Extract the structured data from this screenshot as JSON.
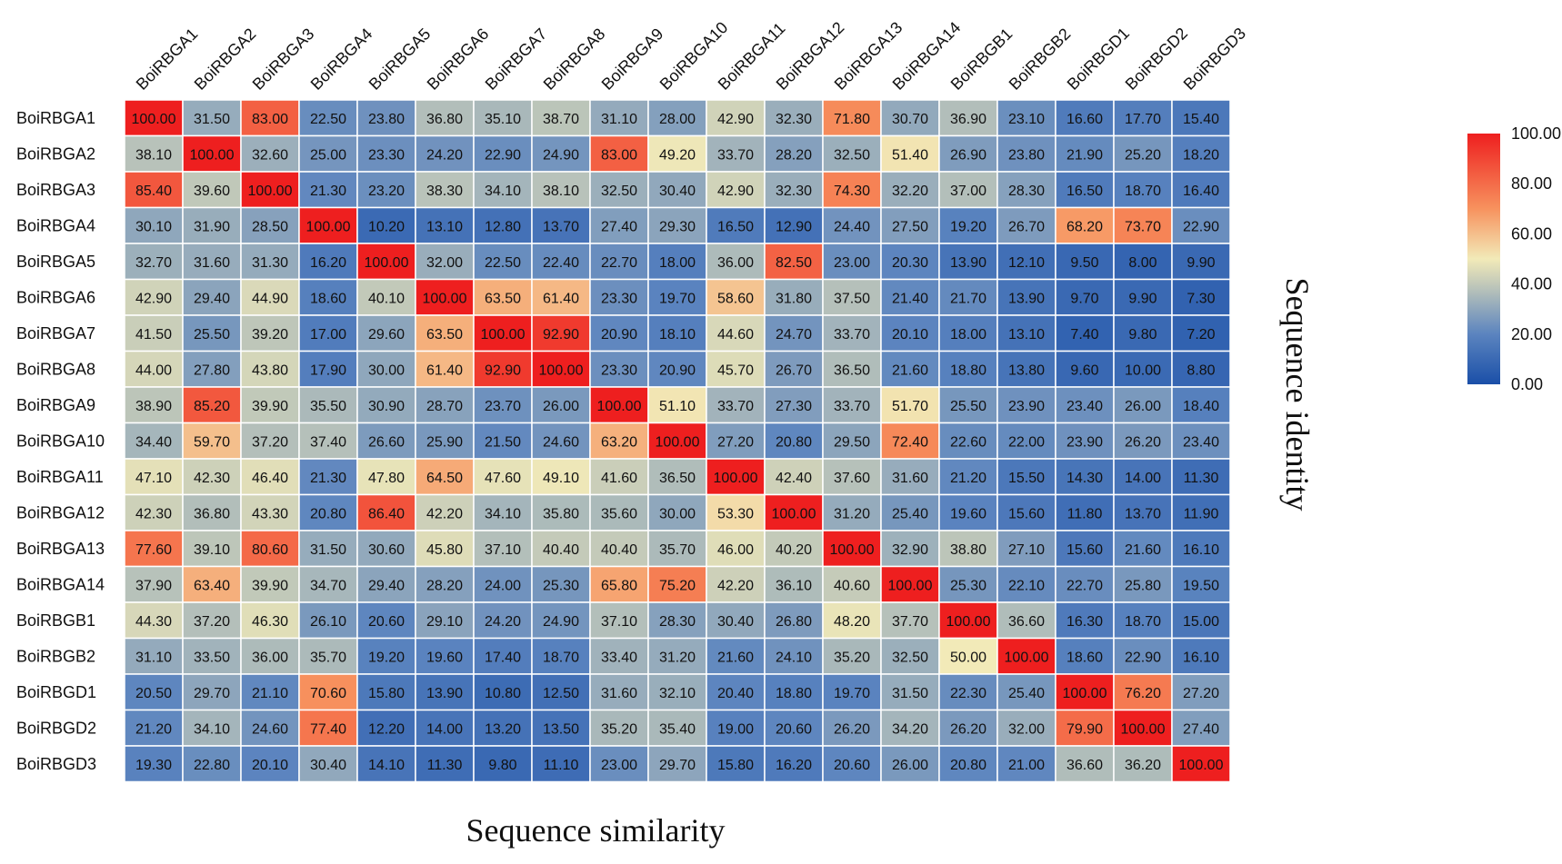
{
  "chart_data": {
    "type": "heatmap",
    "xlabel": "Sequence similarity",
    "ylabel": "Sequence identity",
    "rows": [
      "BoiRBGA1",
      "BoiRBGA2",
      "BoiRBGA3",
      "BoiRBGA4",
      "BoiRBGA5",
      "BoiRBGA6",
      "BoiRBGA7",
      "BoiRBGA8",
      "BoiRBGA9",
      "BoiRBGA10",
      "BoiRBGA11",
      "BoiRBGA12",
      "BoiRBGA13",
      "BoiRBGA14",
      "BoiRBGB1",
      "BoiRBGB2",
      "BoiRBGD1",
      "BoiRBGD2",
      "BoiRBGD3"
    ],
    "columns": [
      "BoiRBGA1",
      "BoiRBGA2",
      "BoiRBGA3",
      "BoiRBGA4",
      "BoiRBGA5",
      "BoiRBGA6",
      "BoiRBGA7",
      "BoiRBGA8",
      "BoiRBGA9",
      "BoiRBGA10",
      "BoiRBGA11",
      "BoiRBGA12",
      "BoiRBGA13",
      "BoiRBGA14",
      "BoiRBGB1",
      "BoiRBGB2",
      "BoiRBGD1",
      "BoiRBGD2",
      "BoiRBGD3"
    ],
    "values": [
      [
        100.0,
        31.5,
        83.0,
        22.5,
        23.8,
        36.8,
        35.1,
        38.7,
        31.1,
        28.0,
        42.9,
        32.3,
        71.8,
        30.7,
        36.9,
        23.1,
        16.6,
        17.7,
        15.4
      ],
      [
        38.1,
        100.0,
        32.6,
        25.0,
        23.3,
        24.2,
        22.9,
        24.9,
        83.0,
        49.2,
        33.7,
        28.2,
        32.5,
        51.4,
        26.9,
        23.8,
        21.9,
        25.2,
        18.2
      ],
      [
        85.4,
        39.6,
        100.0,
        21.3,
        23.2,
        38.3,
        34.1,
        38.1,
        32.5,
        30.4,
        42.9,
        32.3,
        74.3,
        32.2,
        37.0,
        28.3,
        16.5,
        18.7,
        16.4
      ],
      [
        30.1,
        31.9,
        28.5,
        100.0,
        10.2,
        13.1,
        12.8,
        13.7,
        27.4,
        29.3,
        16.5,
        12.9,
        24.4,
        27.5,
        19.2,
        26.7,
        68.2,
        73.7,
        22.9
      ],
      [
        32.7,
        31.6,
        31.3,
        16.2,
        100.0,
        32.0,
        22.5,
        22.4,
        22.7,
        18.0,
        36.0,
        82.5,
        23.0,
        20.3,
        13.9,
        12.1,
        9.5,
        8.0,
        9.9
      ],
      [
        42.9,
        29.4,
        44.9,
        18.6,
        40.1,
        100.0,
        63.5,
        61.4,
        23.3,
        19.7,
        58.6,
        31.8,
        37.5,
        21.4,
        21.7,
        13.9,
        9.7,
        9.9,
        7.3
      ],
      [
        41.5,
        25.5,
        39.2,
        17.0,
        29.6,
        63.5,
        100.0,
        92.9,
        20.9,
        18.1,
        44.6,
        24.7,
        33.7,
        20.1,
        18.0,
        13.1,
        7.4,
        9.8,
        7.2
      ],
      [
        44.0,
        27.8,
        43.8,
        17.9,
        30.0,
        61.4,
        92.9,
        100.0,
        23.3,
        20.9,
        45.7,
        26.7,
        36.5,
        21.6,
        18.8,
        13.8,
        9.6,
        10.0,
        8.8
      ],
      [
        38.9,
        85.2,
        39.9,
        35.5,
        30.9,
        28.7,
        23.7,
        26.0,
        100.0,
        51.1,
        33.7,
        27.3,
        33.7,
        51.7,
        25.5,
        23.9,
        23.4,
        26.0,
        18.4
      ],
      [
        34.4,
        59.7,
        37.2,
        37.4,
        26.6,
        25.9,
        21.5,
        24.6,
        63.2,
        100.0,
        27.2,
        20.8,
        29.5,
        72.4,
        22.6,
        22.0,
        23.9,
        26.2,
        23.4
      ],
      [
        47.1,
        42.3,
        46.4,
        21.3,
        47.8,
        64.5,
        47.6,
        49.1,
        41.6,
        36.5,
        100.0,
        42.4,
        37.6,
        31.6,
        21.2,
        15.5,
        14.3,
        14.0,
        11.3
      ],
      [
        42.3,
        36.8,
        43.3,
        20.8,
        86.4,
        42.2,
        34.1,
        35.8,
        35.6,
        30.0,
        53.3,
        100.0,
        31.2,
        25.4,
        19.6,
        15.6,
        11.8,
        13.7,
        11.9
      ],
      [
        77.6,
        39.1,
        80.6,
        31.5,
        30.6,
        45.8,
        37.1,
        40.4,
        40.4,
        35.7,
        46.0,
        40.2,
        100.0,
        32.9,
        38.8,
        27.1,
        15.6,
        21.6,
        16.1
      ],
      [
        37.9,
        63.4,
        39.9,
        34.7,
        29.4,
        28.2,
        24.0,
        25.3,
        65.8,
        75.2,
        42.2,
        36.1,
        40.6,
        100.0,
        25.3,
        22.1,
        22.7,
        25.8,
        19.5
      ],
      [
        44.3,
        37.2,
        46.3,
        26.1,
        20.6,
        29.1,
        24.2,
        24.9,
        37.1,
        28.3,
        30.4,
        26.8,
        48.2,
        37.7,
        100.0,
        36.6,
        16.3,
        18.7,
        15.0
      ],
      [
        31.1,
        33.5,
        36.0,
        35.7,
        19.2,
        19.6,
        17.4,
        18.7,
        33.4,
        31.2,
        21.6,
        24.1,
        35.2,
        32.5,
        50.0,
        100.0,
        18.6,
        22.9,
        16.1
      ],
      [
        20.5,
        29.7,
        21.1,
        70.6,
        15.8,
        13.9,
        10.8,
        12.5,
        31.6,
        32.1,
        20.4,
        18.8,
        19.7,
        31.5,
        22.3,
        25.4,
        100.0,
        76.2,
        27.2
      ],
      [
        21.2,
        34.1,
        24.6,
        77.4,
        12.2,
        14.0,
        13.2,
        13.5,
        35.2,
        35.4,
        19.0,
        20.6,
        26.2,
        34.2,
        26.2,
        32.0,
        79.9,
        100.0,
        27.4
      ],
      [
        19.3,
        22.8,
        20.1,
        30.4,
        14.1,
        11.3,
        9.8,
        11.1,
        23.0,
        29.7,
        15.8,
        16.2,
        20.6,
        26.0,
        20.8,
        21.0,
        36.6,
        36.2,
        100.0
      ]
    ],
    "color_scale": {
      "min": 0,
      "max": 100,
      "stops": [
        {
          "value": 0,
          "color": "#1a4fa8"
        },
        {
          "value": 20,
          "color": "#5b84bf"
        },
        {
          "value": 40,
          "color": "#c2c9b9"
        },
        {
          "value": 50,
          "color": "#f2eab8"
        },
        {
          "value": 70,
          "color": "#f7925e"
        },
        {
          "value": 100,
          "color": "#ee1f1f"
        }
      ]
    },
    "legend": {
      "position": "right",
      "ticks": [
        "100.00",
        "80.00",
        "60.00",
        "40.00",
        "20.00",
        "0.00"
      ]
    }
  }
}
